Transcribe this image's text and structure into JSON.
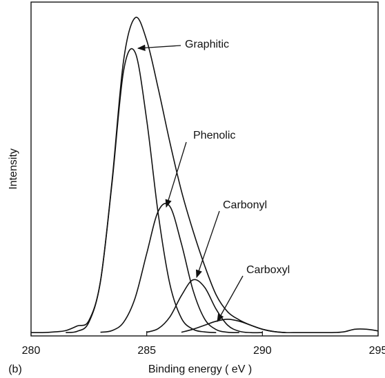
{
  "chart_data": {
    "type": "line",
    "xlabel": "Binding energy ( eV )",
    "ylabel": "Intensity",
    "panel_label": "(b)",
    "x": [
      280,
      280.5,
      281,
      281.5,
      282,
      282.5,
      283,
      283.5,
      284,
      284.5,
      285,
      285.5,
      286,
      286.5,
      287,
      287.5,
      288,
      288.5,
      289,
      289.5,
      290,
      290.5,
      291,
      291.5,
      292,
      292.5,
      293,
      293.5,
      294,
      294.5,
      295
    ],
    "xlim": [
      280,
      295
    ],
    "xticks": [
      280,
      285,
      290,
      295
    ],
    "ylim": [
      0,
      100
    ],
    "series": [
      {
        "color": "#111111",
        "values": [
          1,
          1,
          1.2,
          1.6,
          3.0,
          4.6,
          16.4,
          46.4,
          82.5,
          95.3,
          88.5,
          74.0,
          58.0,
          43.4,
          31.5,
          21.1,
          12.3,
          7.2,
          4.8,
          3.2,
          2.0,
          1.3,
          1,
          1,
          1,
          1,
          1,
          1.2,
          2,
          2,
          1.5
        ]
      },
      {
        "name": "Graphitic",
        "color": "#111111",
        "values": [
          null,
          null,
          null,
          1,
          1.4,
          4.1,
          16.3,
          45.8,
          79.4,
          84.9,
          64.6,
          36.4,
          15.5,
          5.3,
          2.0,
          1.2,
          1.0,
          null,
          null,
          null,
          null,
          null,
          null,
          null,
          null,
          null,
          null,
          null,
          null,
          null,
          null
        ]
      },
      {
        "name": "Phenolic",
        "color": "#111111",
        "values": [
          null,
          null,
          null,
          null,
          null,
          null,
          1.1,
          1.6,
          4.1,
          11.4,
          24.7,
          37.4,
          38.8,
          27.6,
          13.7,
          5.1,
          1.9,
          1.1,
          1.0,
          null,
          null,
          null,
          null,
          null,
          null,
          null,
          null,
          null,
          null,
          null,
          null
        ]
      },
      {
        "name": "Carbonyl",
        "color": "#111111",
        "values": [
          null,
          null,
          null,
          null,
          null,
          null,
          null,
          null,
          null,
          null,
          1.1,
          2.2,
          5.7,
          12.1,
          16.8,
          14.6,
          8.0,
          3.2,
          1.4,
          1.0,
          1.0,
          null,
          null,
          null,
          null,
          null,
          null,
          null,
          null,
          null,
          null
        ]
      },
      {
        "name": "Carboxyl",
        "color": "#111111",
        "values": [
          null,
          null,
          null,
          null,
          null,
          null,
          null,
          null,
          null,
          null,
          null,
          null,
          null,
          1.1,
          2.0,
          3.2,
          4.4,
          5.0,
          4.4,
          3.2,
          2.0,
          1.3,
          1.0,
          null,
          null,
          null,
          null,
          null,
          null,
          null,
          null
        ]
      }
    ]
  }
}
